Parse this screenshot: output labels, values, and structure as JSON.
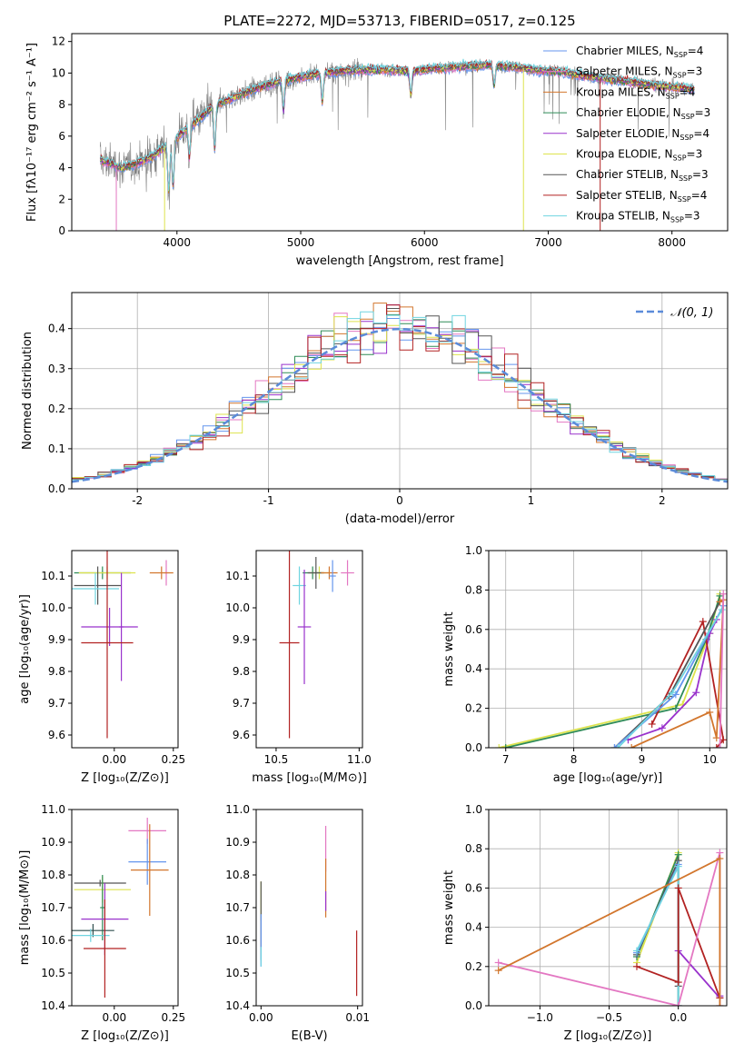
{
  "figure_title": "PLATE=2272, MJD=53713, FIBERID=0517, z=0.125",
  "chart_data": [
    {
      "id": "spectrum",
      "type": "line",
      "xlabel": "wavelength [Angstrom, rest frame]",
      "ylabel": "Flux [fλ10⁻¹⁷ erg cm⁻² s⁻¹ A⁻¹]",
      "xlim": [
        3150,
        8450
      ],
      "ylim": [
        0,
        12.5
      ],
      "xticks": [
        4000,
        5000,
        6000,
        7000,
        8000
      ],
      "yticks": [
        0,
        2,
        4,
        6,
        8,
        10,
        12
      ],
      "continuum_x": [
        3380,
        3450,
        3550,
        3650,
        3800,
        3950,
        4100,
        4300,
        4500,
        4700,
        4900,
        5100,
        5300,
        5500,
        5700,
        5900,
        6100,
        6300,
        6500,
        6700,
        6900,
        7100,
        7300,
        7500,
        7700,
        7900,
        8150
      ],
      "continuum_y": [
        4.5,
        4.3,
        4.0,
        4.2,
        4.7,
        5.6,
        6.6,
        7.9,
        8.6,
        9.2,
        9.6,
        9.9,
        10.1,
        10.2,
        10.2,
        10.1,
        10.3,
        10.4,
        10.5,
        10.4,
        10.2,
        10.1,
        9.8,
        9.6,
        9.4,
        9.2,
        9.0
      ],
      "dips": [
        {
          "series": "Salpeter MILES",
          "x": 3510,
          "y": 0
        },
        {
          "series": "Kroupa ELODIE",
          "x": 3900,
          "y": 0
        },
        {
          "series": "Kroupa ELODIE",
          "x": 6800,
          "y": 0
        },
        {
          "series": "Salpeter STELIB",
          "x": 7420,
          "y": 0
        }
      ],
      "series": [
        {
          "name": "Chabrier MILES, N_SSP=4",
          "label": "Chabrier MILES, N",
          "sub": "SSP",
          "suffix": "=4",
          "color": "#6495ed"
        },
        {
          "name": "Salpeter MILES, N_SSP=3",
          "label": "Salpeter MILES, N",
          "sub": "SSP",
          "suffix": "=3",
          "color": "#e377c2"
        },
        {
          "name": "Kroupa MILES, N_SSP=4",
          "label": "Kroupa MILES, N",
          "sub": "SSP",
          "suffix": "=4",
          "color": "#d2762d"
        },
        {
          "name": "Chabrier ELODIE, N_SSP=3",
          "label": "Chabrier ELODIE, N",
          "sub": "SSP",
          "suffix": "=3",
          "color": "#2e8b57"
        },
        {
          "name": "Salpeter ELODIE, N_SSP=4",
          "label": "Salpeter ELODIE, N",
          "sub": "SSP",
          "suffix": "=4",
          "color": "#9932cc"
        },
        {
          "name": "Kroupa ELODIE, N_SSP=3",
          "label": "Kroupa ELODIE, N",
          "sub": "SSP",
          "suffix": "=3",
          "color": "#dde34d"
        },
        {
          "name": "Chabrier STELIB, N_SSP=3",
          "label": "Chabrier STELIB, N",
          "sub": "SSP",
          "suffix": "=3",
          "color": "#555555"
        },
        {
          "name": "Salpeter STELIB, N_SSP=4",
          "label": "Salpeter STELIB, N",
          "sub": "SSP",
          "suffix": "=4",
          "color": "#b22222"
        },
        {
          "name": "Kroupa STELIB, N_SSP=3",
          "label": "Kroupa STELIB, N",
          "sub": "SSP",
          "suffix": "=3",
          "color": "#6fd4e0"
        }
      ],
      "data_color": "#808080",
      "legend": "right"
    },
    {
      "id": "residuals",
      "type": "histogram",
      "xlabel": "(data-model)/error",
      "ylabel": "Normed distribution",
      "xlim": [
        -2.5,
        2.5
      ],
      "ylim": [
        0,
        0.49
      ],
      "xticks": [
        -2,
        -1,
        0,
        1,
        2
      ],
      "yticks": [
        0.0,
        0.1,
        0.2,
        0.3,
        0.4
      ],
      "bin_width": 0.1,
      "reference": {
        "label": "𝒩(0, 1)",
        "color": "#5b8bd9",
        "style": "dashed"
      },
      "legend": "top-right",
      "grid": true
    },
    {
      "id": "age_vs_Z",
      "type": "errorbar",
      "xlabel": "Z [log₁₀(Z/Z⊙)]",
      "ylabel": "age  [log₁₀(age/yr)]",
      "xlim": [
        -0.18,
        0.27
      ],
      "ylim": [
        9.56,
        10.18
      ],
      "xticks": [
        0.0,
        0.25
      ],
      "xticklabels": [
        "0.00",
        "0.25"
      ],
      "yticks": [
        9.6,
        9.7,
        9.8,
        9.9,
        10.0,
        10.1
      ],
      "points": [
        {
          "x": -0.05,
          "xerr": 0.12,
          "y": 10.11,
          "yerr": 0.02,
          "color": "#2e8b57"
        },
        {
          "x": -0.03,
          "xerr": 0.12,
          "y": 10.11,
          "yerr": 0.02,
          "color": "#dde34d"
        },
        {
          "x": -0.07,
          "xerr": 0.1,
          "y": 10.07,
          "yerr": 0.06,
          "color": "#555555"
        },
        {
          "x": -0.08,
          "xerr": 0.1,
          "y": 10.06,
          "yerr": 0.05,
          "color": "#6fd4e0"
        },
        {
          "x": -0.02,
          "xerr": 0.12,
          "y": 9.94,
          "yerr": 0.06,
          "color": "#9932cc"
        },
        {
          "x": 0.03,
          "xerr": 0.01,
          "y": 9.94,
          "yerr": 0.17,
          "color": "#9932cc"
        },
        {
          "x": -0.03,
          "xerr": 0.11,
          "y": 9.89,
          "yerr": 0.3,
          "color": "#b22222"
        },
        {
          "x": 0.22,
          "xerr": 0.01,
          "y": 10.11,
          "yerr": 0.04,
          "color": "#e377c2"
        },
        {
          "x": 0.2,
          "xerr": 0.05,
          "y": 10.11,
          "yerr": 0.02,
          "color": "#d2762d"
        }
      ]
    },
    {
      "id": "age_vs_mass",
      "type": "errorbar",
      "xlabel": "mass [log₁₀(M/M⊙)]",
      "ylabel": "",
      "xlim": [
        10.38,
        11.02
      ],
      "ylim": [
        9.56,
        10.18
      ],
      "xticks": [
        10.5,
        11.0
      ],
      "xticklabels": [
        "10.5",
        "11.0"
      ],
      "yticks": [
        9.6,
        9.7,
        9.8,
        9.9,
        10.0,
        10.1
      ],
      "points": [
        {
          "x": 10.72,
          "xerr": 0.06,
          "y": 10.11,
          "yerr": 0.02,
          "color": "#2e8b57"
        },
        {
          "x": 10.76,
          "xerr": 0.06,
          "y": 10.11,
          "yerr": 0.02,
          "color": "#dde34d"
        },
        {
          "x": 10.74,
          "xerr": 0.05,
          "y": 10.11,
          "yerr": 0.05,
          "color": "#555555"
        },
        {
          "x": 10.64,
          "xerr": 0.04,
          "y": 10.07,
          "yerr": 0.06,
          "color": "#6fd4e0"
        },
        {
          "x": 10.67,
          "xerr": 0.04,
          "y": 9.94,
          "yerr": 0.18,
          "color": "#9932cc"
        },
        {
          "x": 10.58,
          "xerr": 0.06,
          "y": 9.89,
          "yerr": 0.3,
          "color": "#b22222"
        },
        {
          "x": 10.93,
          "xerr": 0.04,
          "y": 10.11,
          "yerr": 0.04,
          "color": "#e377c2"
        },
        {
          "x": 10.82,
          "xerr": 0.05,
          "y": 10.11,
          "yerr": 0.02,
          "color": "#d2762d"
        },
        {
          "x": 10.84,
          "xerr": 0.02,
          "y": 10.1,
          "yerr": 0.05,
          "color": "#6495ed"
        }
      ]
    },
    {
      "id": "massweight_vs_age",
      "type": "line",
      "xlabel": "age  [log₁₀(age/yr)]",
      "ylabel": "mass weight",
      "xlim": [
        6.75,
        10.25
      ],
      "ylim": [
        0,
        1.0
      ],
      "xticks": [
        7,
        8,
        9,
        10
      ],
      "yticks": [
        0.0,
        0.2,
        0.4,
        0.6,
        0.8,
        1.0
      ],
      "grid": true,
      "series": [
        {
          "color": "#dde34d",
          "x": [
            6.9,
            9.6,
            10.0,
            10.15
          ],
          "y": [
            0.0,
            0.22,
            0.58,
            0.78
          ]
        },
        {
          "color": "#2e8b57",
          "x": [
            7.0,
            9.5,
            9.95,
            10.15
          ],
          "y": [
            0.0,
            0.2,
            0.55,
            0.77
          ]
        },
        {
          "color": "#9932cc",
          "x": [
            8.8,
            9.3,
            9.8,
            10.0,
            10.1
          ],
          "y": [
            0.04,
            0.1,
            0.28,
            0.58,
            0.65
          ]
        },
        {
          "color": "#b22222",
          "x": [
            9.15,
            9.9,
            10.2,
            10.1
          ],
          "y": [
            0.12,
            0.64,
            0.04,
            0.0
          ]
        },
        {
          "color": "#555555",
          "x": [
            8.6,
            9.4,
            10.15
          ],
          "y": [
            0.0,
            0.26,
            0.74
          ]
        },
        {
          "color": "#6495ed",
          "x": [
            8.6,
            9.5,
            10.2
          ],
          "y": [
            0.0,
            0.27,
            0.72
          ]
        },
        {
          "color": "#6fd4e0",
          "x": [
            8.65,
            9.45,
            10.18
          ],
          "y": [
            0.0,
            0.28,
            0.7
          ]
        },
        {
          "color": "#d2762d",
          "x": [
            8.85,
            10.0,
            10.1,
            10.2,
            10.15
          ],
          "y": [
            0.0,
            0.18,
            0.05,
            0.75,
            0.74
          ]
        },
        {
          "color": "#e377c2",
          "x": [
            10.15,
            10.2
          ],
          "y": [
            0.0,
            0.78
          ]
        }
      ]
    },
    {
      "id": "mass_vs_Z",
      "type": "errorbar",
      "xlabel": "Z [log₁₀(Z/Z⊙)]",
      "ylabel": "mass [log₁₀(M/M⊙)]",
      "xlim": [
        -0.18,
        0.27
      ],
      "ylim": [
        10.4,
        11.0
      ],
      "xticks": [
        0.0,
        0.25
      ],
      "xticklabels": [
        "0.00",
        "0.25"
      ],
      "yticks": [
        10.4,
        10.5,
        10.6,
        10.7,
        10.8,
        10.9,
        11.0
      ],
      "points": [
        {
          "x": -0.06,
          "xerr": 0.11,
          "y": 10.775,
          "yerr": 0.01,
          "color": "#555555"
        },
        {
          "x": -0.05,
          "xerr": 0.12,
          "y": 10.755,
          "yerr": 0.04,
          "color": "#dde34d"
        },
        {
          "x": -0.05,
          "xerr": 0.01,
          "y": 10.7,
          "yerr": 0.1,
          "color": "#2e8b57"
        },
        {
          "x": -0.04,
          "xerr": 0.1,
          "y": 10.665,
          "yerr": 0.11,
          "color": "#9932cc"
        },
        {
          "x": -0.09,
          "xerr": 0.09,
          "y": 10.63,
          "yerr": 0.02,
          "color": "#2f4f4f"
        },
        {
          "x": -0.1,
          "xerr": 0.08,
          "y": 10.615,
          "yerr": 0.02,
          "color": "#6fd4e0"
        },
        {
          "x": -0.04,
          "xerr": 0.09,
          "y": 10.575,
          "yerr": 0.15,
          "color": "#b22222"
        },
        {
          "x": 0.14,
          "xerr": 0.08,
          "y": 10.935,
          "yerr": 0.04,
          "color": "#e377c2"
        },
        {
          "x": 0.14,
          "xerr": 0.08,
          "y": 10.84,
          "yerr": 0.07,
          "color": "#6495ed"
        },
        {
          "x": 0.15,
          "xerr": 0.08,
          "y": 10.815,
          "yerr": 0.14,
          "color": "#d2762d"
        }
      ]
    },
    {
      "id": "mass_vs_EBV",
      "type": "errorbar",
      "xlabel": "E(B-V)",
      "ylabel": "",
      "xlim": [
        -0.0005,
        0.0105
      ],
      "ylim": [
        10.4,
        11.0
      ],
      "xticks": [
        0.0,
        0.01
      ],
      "xticklabels": [
        "0.00",
        "0.01"
      ],
      "yticks": [
        10.4,
        10.5,
        10.6,
        10.7,
        10.8,
        10.9,
        11.0
      ],
      "points": [
        {
          "x": 0.0,
          "y": 10.72,
          "yerr": 0.06,
          "color": "#dde34d"
        },
        {
          "x": 0.0,
          "y": 10.66,
          "yerr": 0.12,
          "color": "#555555"
        },
        {
          "x": 0.0,
          "y": 10.6,
          "yerr": 0.08,
          "color": "#6495ed"
        },
        {
          "x": 0.0,
          "y": 10.55,
          "yerr": 0.03,
          "color": "#6fd4e0"
        },
        {
          "x": 0.0067,
          "y": 10.88,
          "yerr": 0.07,
          "color": "#e377c2"
        },
        {
          "x": 0.0067,
          "y": 10.76,
          "yerr": 0.09,
          "color": "#d2762d"
        },
        {
          "x": 0.0067,
          "y": 10.72,
          "yerr": 0.03,
          "color": "#9932cc"
        },
        {
          "x": 0.0099,
          "y": 10.53,
          "yerr": 0.1,
          "color": "#b22222"
        }
      ]
    },
    {
      "id": "massweight_vs_Z",
      "type": "line",
      "xlabel": "Z [log₁₀(Z/Z⊙)]",
      "ylabel": "mass weight",
      "xlim": [
        -1.37,
        0.35
      ],
      "ylim": [
        0,
        1.0
      ],
      "xticks": [
        -1.0,
        -0.5,
        0.0
      ],
      "xticklabels": [
        "−1.0",
        "−0.5",
        "0.0"
      ],
      "yticks": [
        0.0,
        0.2,
        0.4,
        0.6,
        0.8,
        1.0
      ],
      "grid": true,
      "series": [
        {
          "color": "#dde34d",
          "x": [
            -0.3,
            0.0,
            0.0
          ],
          "y": [
            0.22,
            0.78,
            0.0
          ]
        },
        {
          "color": "#2e8b57",
          "x": [
            -0.3,
            0.0,
            0.0
          ],
          "y": [
            0.25,
            0.77,
            0.0
          ]
        },
        {
          "color": "#555555",
          "x": [
            -0.3,
            0.0,
            0.0
          ],
          "y": [
            0.26,
            0.74,
            0.1
          ]
        },
        {
          "color": "#6495ed",
          "x": [
            -0.3,
            0.0,
            0.0
          ],
          "y": [
            0.27,
            0.72,
            0.0
          ]
        },
        {
          "color": "#6fd4e0",
          "x": [
            -0.3,
            0.0,
            0.0
          ],
          "y": [
            0.28,
            0.71,
            0.0
          ]
        },
        {
          "color": "#9932cc",
          "x": [
            0.0,
            0.3,
            0.3
          ],
          "y": [
            0.28,
            0.04,
            0.05
          ]
        },
        {
          "color": "#b22222",
          "x": [
            -0.3,
            0.0,
            0.0,
            0.3
          ],
          "y": [
            0.2,
            0.12,
            0.6,
            0.04
          ]
        },
        {
          "color": "#e377c2",
          "x": [
            -1.3,
            0.0,
            0.3,
            0.3
          ],
          "y": [
            0.22,
            0.0,
            0.78,
            0.0
          ]
        },
        {
          "color": "#d2762d",
          "x": [
            -1.3,
            0.3,
            0.3
          ],
          "y": [
            0.18,
            0.75,
            0.0
          ]
        }
      ]
    }
  ]
}
